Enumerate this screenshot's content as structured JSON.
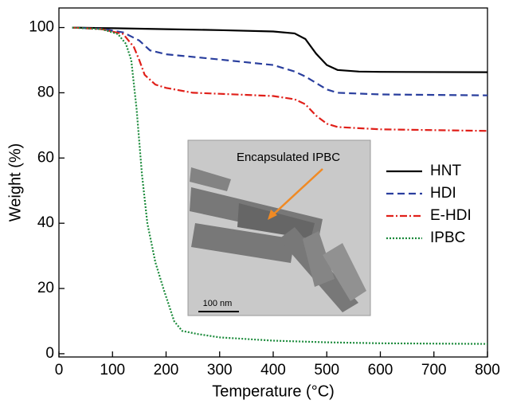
{
  "chart_data": {
    "type": "line",
    "xlabel": "Temperature (°C)",
    "ylabel": "Weight (%)",
    "xlim": [
      0,
      800
    ],
    "ylim": [
      -1,
      106
    ],
    "xticks": [
      0,
      100,
      200,
      300,
      400,
      500,
      600,
      700,
      800
    ],
    "yticks": [
      0,
      20,
      40,
      60,
      80,
      100
    ],
    "legend": "right",
    "annotations": [
      "Encapsulated IPBC",
      "100 nm"
    ],
    "series": [
      {
        "name": "HNT",
        "color": "#000000",
        "dash": "solid",
        "x": [
          25,
          100,
          200,
          300,
          400,
          440,
          460,
          480,
          500,
          520,
          560,
          600,
          800
        ],
        "values": [
          100,
          99.8,
          99.5,
          99.2,
          98.8,
          98.2,
          96.5,
          92,
          88.5,
          87,
          86.5,
          86.4,
          86.3
        ]
      },
      {
        "name": "HDI",
        "color": "#2a3f9e",
        "dash": "dashed",
        "x": [
          25,
          80,
          120,
          150,
          170,
          200,
          300,
          400,
          440,
          460,
          480,
          500,
          520,
          600,
          800
        ],
        "values": [
          100,
          99.6,
          98.5,
          96,
          93,
          91.8,
          90.2,
          88.5,
          86.5,
          85,
          83,
          81,
          80,
          79.5,
          79.2
        ]
      },
      {
        "name": "E-HDI",
        "color": "#e0201a",
        "dash": "dashdot",
        "x": [
          25,
          80,
          120,
          140,
          150,
          160,
          180,
          200,
          250,
          300,
          400,
          440,
          460,
          480,
          500,
          520,
          600,
          800
        ],
        "values": [
          100,
          99.5,
          98,
          94,
          90,
          85.5,
          82.5,
          81.5,
          80,
          79.7,
          79,
          78,
          76.5,
          73,
          70.5,
          69.5,
          68.8,
          68.3
        ]
      },
      {
        "name": "IPBC",
        "color": "#1a8a3a",
        "dash": "dotted",
        "x": [
          25,
          80,
          110,
          125,
          135,
          145,
          155,
          165,
          180,
          195,
          205,
          215,
          230,
          260,
          300,
          400,
          500,
          600,
          800
        ],
        "values": [
          100,
          99.5,
          98,
          95,
          90,
          75,
          55,
          40,
          28,
          20,
          15,
          10,
          7,
          6,
          5,
          4,
          3.5,
          3.2,
          3
        ]
      }
    ]
  }
}
